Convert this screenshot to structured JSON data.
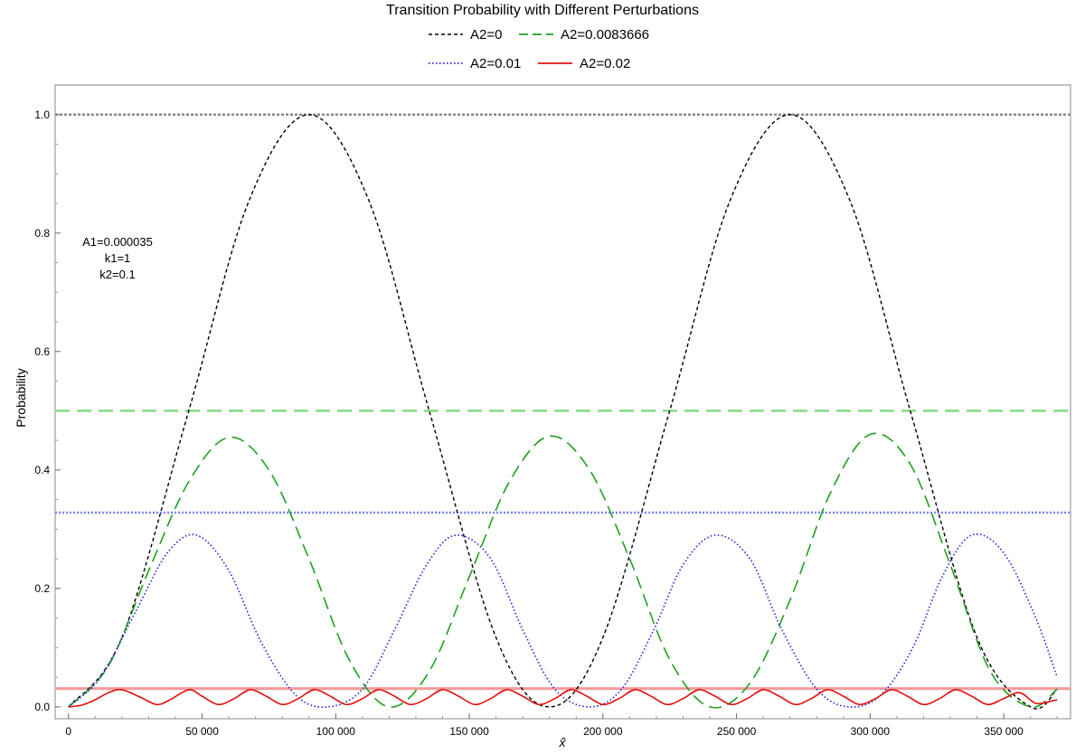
{
  "chart_data": {
    "type": "line",
    "title": "Transition Probability with Different Perturbations",
    "xlabel": "x̂",
    "ylabel": "Probability",
    "xlim": [
      -5000,
      375000
    ],
    "ylim": [
      -0.02,
      1.05
    ],
    "x_ticks": [
      0,
      50000,
      100000,
      150000,
      200000,
      250000,
      300000,
      350000
    ],
    "x_tick_labels": [
      "0",
      "50 000",
      "100 000",
      "150 000",
      "200 000",
      "250 000",
      "300 000",
      "350 000"
    ],
    "y_ticks": [
      0.0,
      0.2,
      0.4,
      0.6,
      0.8,
      1.0
    ],
    "y_tick_labels": [
      "0.0",
      "0.2",
      "0.4",
      "0.6",
      "0.8",
      "1.0"
    ],
    "grid": false,
    "legend_position": "top-center",
    "annotation": [
      "A1=0.000035",
      "k1=1",
      "k2=0.1"
    ],
    "series": [
      {
        "name": "A2=0",
        "color": "#000000",
        "style": "short-dash",
        "x": [
          0,
          20000,
          45000,
          67500,
          90000,
          112500,
          135000,
          160000,
          180000,
          200000,
          225000,
          247500,
          270000,
          292500,
          315000,
          340000,
          360000,
          370000
        ],
        "y": [
          0.0,
          0.117,
          0.5,
          0.854,
          1.0,
          0.854,
          0.5,
          0.117,
          0.0,
          0.117,
          0.5,
          0.854,
          1.0,
          0.854,
          0.5,
          0.117,
          0.0,
          0.03
        ],
        "max_line": 1.0,
        "max_line_color": "#888888"
      },
      {
        "name": "A2=0.0083666",
        "color": "#20a020",
        "style": "long-dash",
        "x": [
          0,
          15000,
          30000,
          45000,
          60000,
          75000,
          90000,
          105000,
          120000,
          135000,
          150000,
          165000,
          180000,
          195000,
          210000,
          225000,
          240000,
          255000,
          270000,
          285000,
          300000,
          315000,
          330000,
          345000,
          360000,
          370000
        ],
        "y": [
          0.0,
          0.07,
          0.23,
          0.38,
          0.455,
          0.4,
          0.25,
          0.08,
          0.0,
          0.06,
          0.22,
          0.38,
          0.457,
          0.4,
          0.25,
          0.08,
          0.0,
          0.04,
          0.18,
          0.36,
          0.46,
          0.41,
          0.24,
          0.06,
          0.0,
          0.03
        ],
        "max_line": 0.5,
        "max_line_color": "#88d888"
      },
      {
        "name": "A2=0.01",
        "color": "#2020dd",
        "style": "dotted",
        "x": [
          0,
          12000,
          25000,
          37000,
          48000,
          60000,
          72000,
          85000,
          97000,
          110000,
          122000,
          134000,
          145000,
          158000,
          170000,
          182000,
          195000,
          207000,
          219000,
          230000,
          242000,
          255000,
          267000,
          280000,
          292000,
          304000,
          316000,
          327000,
          338000,
          350000,
          362000,
          370000
        ],
        "y": [
          0.0,
          0.05,
          0.16,
          0.26,
          0.29,
          0.23,
          0.11,
          0.02,
          0.0,
          0.03,
          0.13,
          0.24,
          0.29,
          0.25,
          0.13,
          0.03,
          0.0,
          0.03,
          0.13,
          0.24,
          0.29,
          0.25,
          0.13,
          0.03,
          0.0,
          0.02,
          0.1,
          0.22,
          0.29,
          0.26,
          0.15,
          0.05
        ],
        "max_line": 0.328,
        "max_line_color": "#7a86ff"
      },
      {
        "name": "A2=0.02",
        "color": "#e01010",
        "style": "solid",
        "x": [
          0,
          5000,
          10000,
          15000,
          20000,
          27000,
          33000,
          38000,
          45000,
          50000,
          56000,
          62000,
          68000,
          74000,
          80000,
          86000,
          92000,
          98000,
          104000,
          110000,
          116000,
          122000,
          128000,
          134000,
          140000,
          146000,
          152000,
          158000,
          164000,
          170000,
          176000,
          182000,
          188000,
          194000,
          200000,
          206000,
          212000,
          218000,
          224000,
          230000,
          236000,
          242000,
          248000,
          254000,
          260000,
          266000,
          272000,
          278000,
          284000,
          290000,
          296000,
          302000,
          308000,
          314000,
          320000,
          326000,
          332000,
          338000,
          344000,
          350000,
          356000,
          362000,
          368000,
          370000
        ],
        "y": [
          0.0,
          0.003,
          0.012,
          0.024,
          0.029,
          0.016,
          0.004,
          0.012,
          0.029,
          0.018,
          0.004,
          0.014,
          0.029,
          0.018,
          0.004,
          0.014,
          0.029,
          0.018,
          0.004,
          0.014,
          0.029,
          0.018,
          0.004,
          0.014,
          0.029,
          0.018,
          0.004,
          0.014,
          0.029,
          0.018,
          0.004,
          0.014,
          0.029,
          0.018,
          0.004,
          0.014,
          0.029,
          0.018,
          0.004,
          0.014,
          0.029,
          0.018,
          0.004,
          0.014,
          0.029,
          0.018,
          0.004,
          0.014,
          0.029,
          0.018,
          0.004,
          0.014,
          0.029,
          0.018,
          0.004,
          0.014,
          0.029,
          0.018,
          0.004,
          0.014,
          0.024,
          0.006,
          0.01,
          0.012
        ],
        "max_line": 0.031,
        "max_line_color": "#f49a9a"
      }
    ]
  }
}
